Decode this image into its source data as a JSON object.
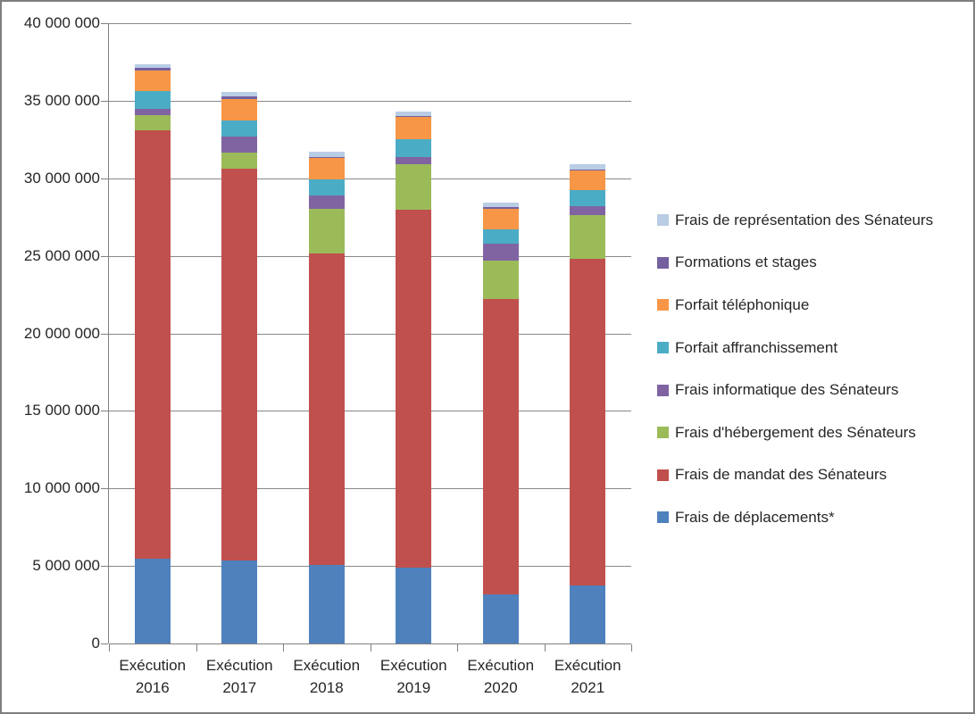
{
  "chart_data": {
    "type": "bar",
    "stacked": true,
    "title": "",
    "xlabel": "",
    "ylabel": "",
    "grid": true,
    "legend_position": "right",
    "ylim": [
      0,
      40000000
    ],
    "ytick_step": 5000000,
    "ytick_labels": [
      "0",
      "5 000 000",
      "10 000 000",
      "15 000 000",
      "20 000 000",
      "25 000 000",
      "30 000 000",
      "35 000 000",
      "40 000 000"
    ],
    "categories": [
      "Exécution 2016",
      "Exécution 2017",
      "Exécution 2018",
      "Exécution 2019",
      "Exécution 2020",
      "Exécution 2021"
    ],
    "series": [
      {
        "name": "Frais de déplacements*",
        "color": "#4F81BD",
        "values": [
          5450000,
          5370000,
          5080000,
          4870000,
          3160000,
          3720000
        ]
      },
      {
        "name": "Frais de mandat des Sénateurs",
        "color": "#C0504D",
        "values": [
          27670000,
          25260000,
          20080000,
          23110000,
          19030000,
          21060000
        ]
      },
      {
        "name": "Frais d'hébergement des Sénateurs",
        "color": "#9BBB59",
        "values": [
          980000,
          1020000,
          2880000,
          2900000,
          2510000,
          2840000
        ]
      },
      {
        "name": "Frais informatique des Sénateurs",
        "color": "#8064A2",
        "values": [
          400000,
          1040000,
          860000,
          460000,
          1080000,
          560000
        ]
      },
      {
        "name": "Forfait affranchissement",
        "color": "#4BACC6",
        "values": [
          1110000,
          1020000,
          1020000,
          1150000,
          920000,
          1050000
        ]
      },
      {
        "name": "Forfait téléphonique",
        "color": "#F79646",
        "values": [
          1340000,
          1400000,
          1400000,
          1460000,
          1340000,
          1270000
        ]
      },
      {
        "name": "Formations et stages",
        "color": "#7560A0",
        "values": [
          160000,
          170000,
          50000,
          50000,
          120000,
          50000
        ]
      },
      {
        "name": "Frais de représentation des Sénateurs",
        "color": "#B9CDE5",
        "values": [
          250000,
          310000,
          330000,
          290000,
          270000,
          350000
        ]
      }
    ],
    "legend_order_top_to_bottom": [
      "Frais de représentation des Sénateurs",
      "Formations et stages",
      "Forfait téléphonique",
      "Forfait affranchissement",
      "Frais informatique des Sénateurs",
      "Frais d'hébergement des Sénateurs",
      "Frais de mandat des Sénateurs",
      "Frais de déplacements*"
    ],
    "colors": {
      "gridline": "#898989",
      "axis": "#808080",
      "text": "#262626",
      "border": "#7f7f7f",
      "background": "#ffffff"
    }
  }
}
